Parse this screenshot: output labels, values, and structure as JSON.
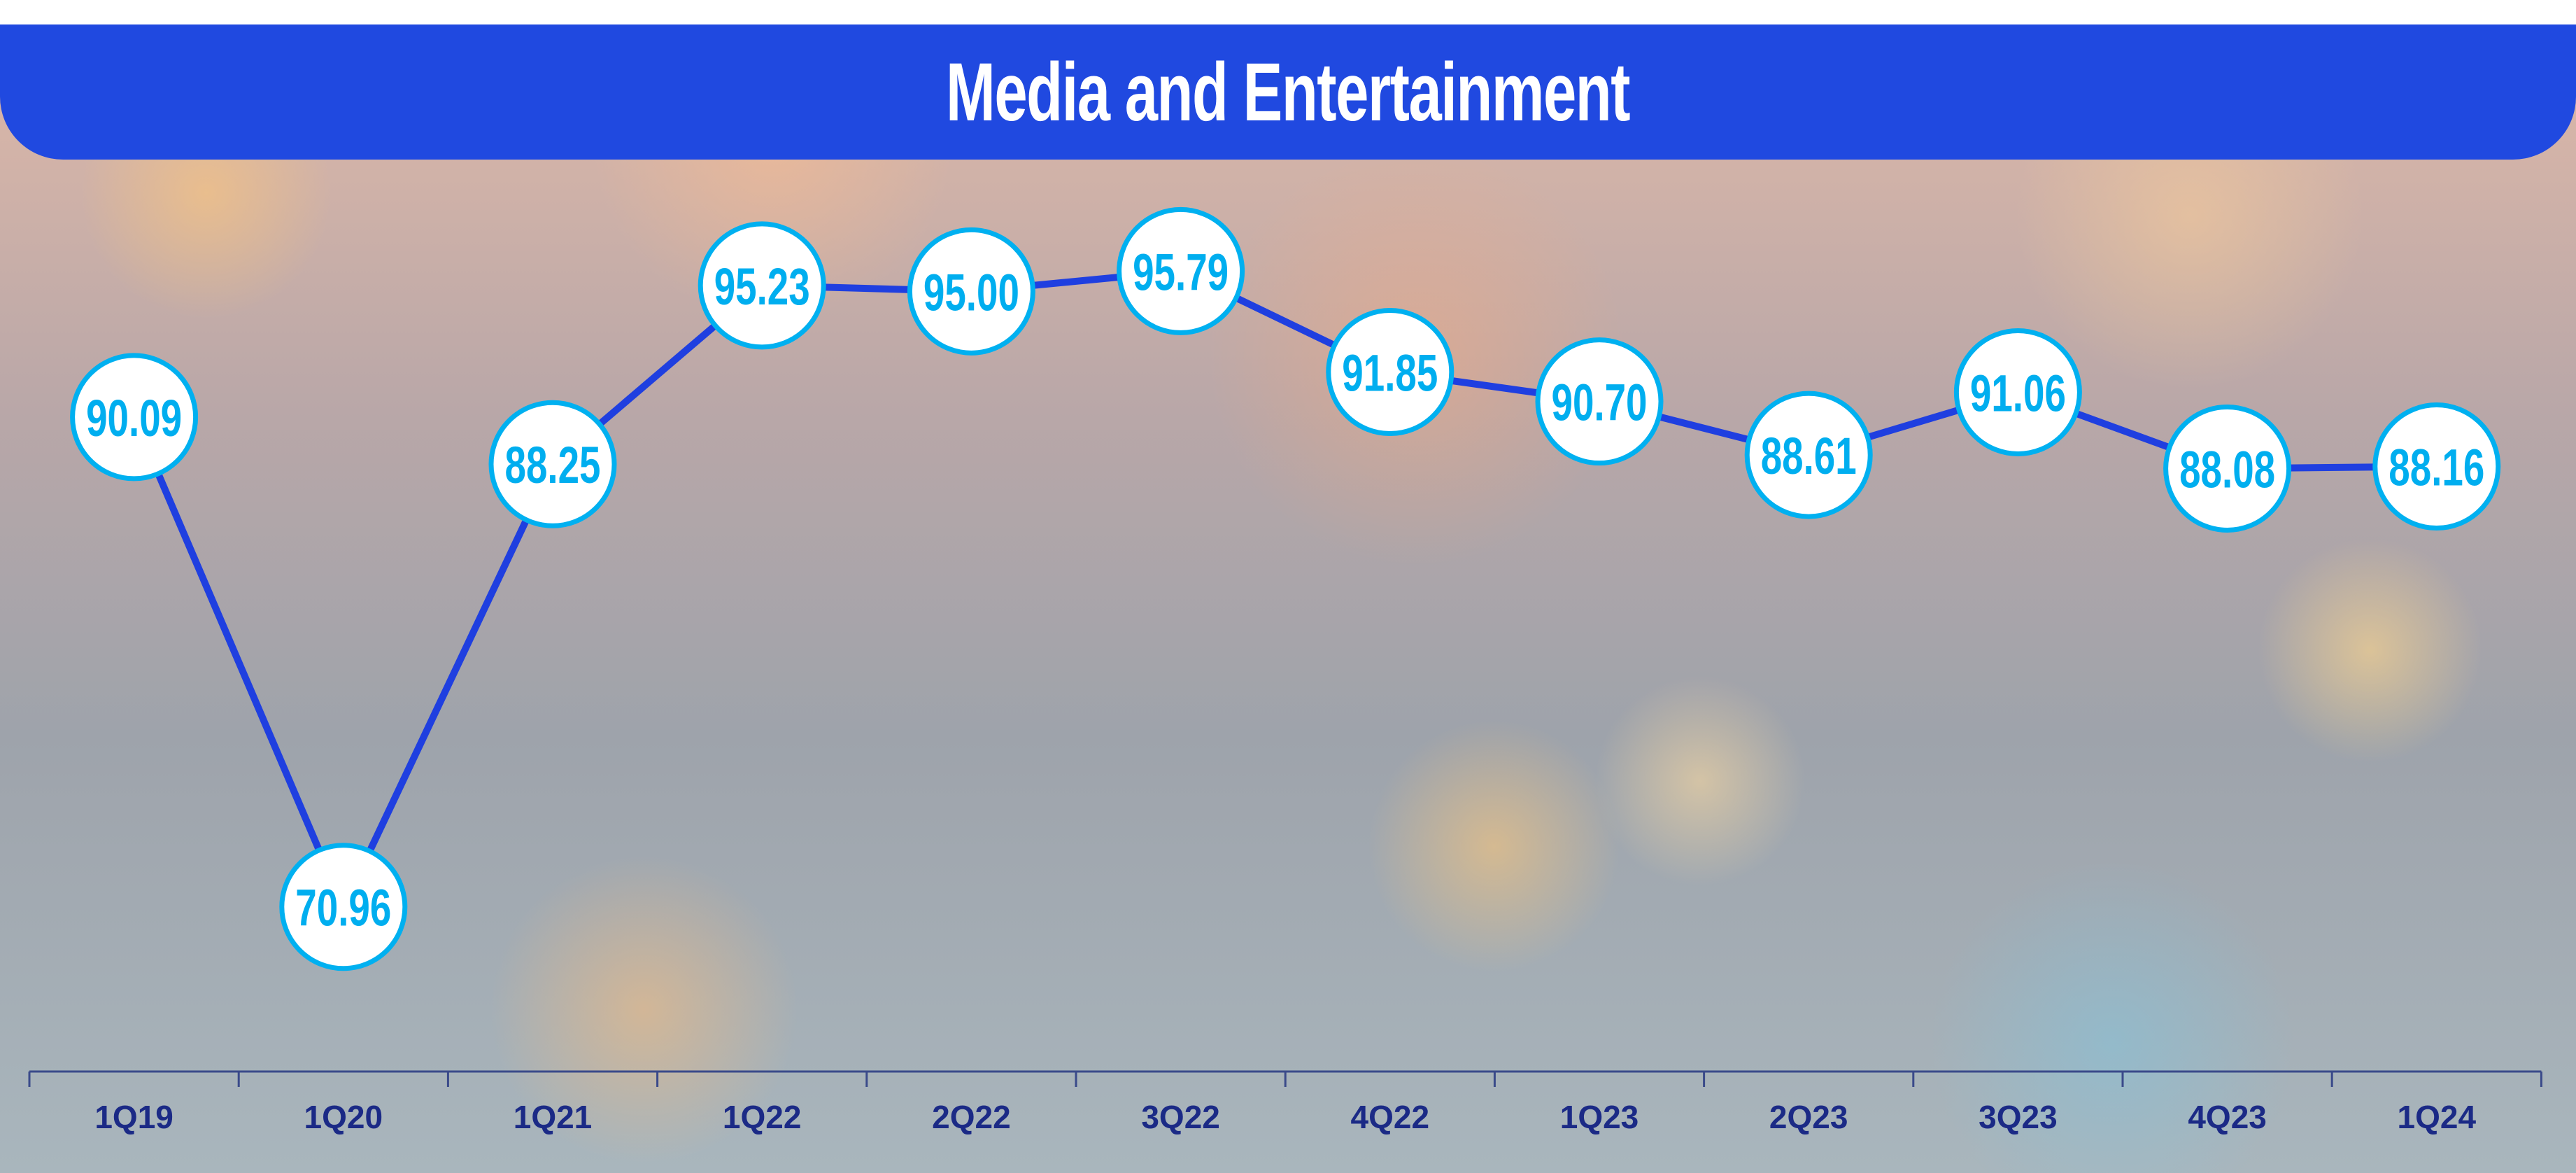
{
  "chart_data": {
    "type": "line",
    "title": "Media and Entertainment",
    "categories": [
      "1Q19",
      "1Q20",
      "1Q21",
      "1Q22",
      "2Q22",
      "3Q22",
      "4Q22",
      "1Q23",
      "2Q23",
      "3Q23",
      "4Q23",
      "1Q24"
    ],
    "series": [
      {
        "name": "Media and Entertainment",
        "values": [
          90.09,
          70.96,
          88.25,
          95.23,
          95.0,
          95.79,
          91.85,
          90.7,
          88.61,
          91.06,
          88.08,
          88.16
        ]
      }
    ],
    "value_labels": [
      "90.09",
      "70.96",
      "88.25",
      "95.23",
      "95.00",
      "95.79",
      "91.85",
      "90.70",
      "88.61",
      "91.06",
      "88.08",
      "88.16"
    ],
    "xlabel": "",
    "ylabel": "",
    "grid": false,
    "legend": "none",
    "colors": {
      "line": "#1f3fe0",
      "marker_stroke": "#00b0f0",
      "label": "#00aeef",
      "axis_label": "#1b2a86",
      "title_bar": "#2049e0"
    }
  }
}
